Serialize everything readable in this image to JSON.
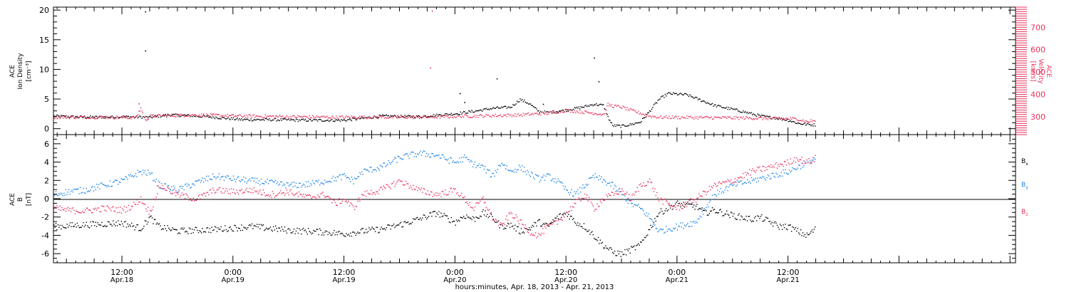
{
  "colors": {
    "black": "#000000",
    "red": "#e8305a",
    "blue": "#1a82e6"
  },
  "xaxis": {
    "title": "hours:minutes, Apr. 18, 2013 - Apr. 21, 2013",
    "range_hours": [
      4.6,
      108.6
    ],
    "ticks": [
      {
        "h": 12,
        "time": "12:00",
        "date": "Apr.18"
      },
      {
        "h": 24,
        "time": "0:00",
        "date": "Apr.19"
      },
      {
        "h": 36,
        "time": "12:00",
        "date": "Apr.19"
      },
      {
        "h": 48,
        "time": "0:00",
        "date": "Apr.20"
      },
      {
        "h": 60,
        "time": "12:00",
        "date": "Apr.20"
      },
      {
        "h": 72,
        "time": "0:00",
        "date": "Apr.21"
      },
      {
        "h": 84,
        "time": "12:00",
        "date": "Apr.21"
      }
    ]
  },
  "chart_data": [
    {
      "type": "scatter",
      "panel": "top",
      "ylabel_left": [
        "ACE",
        "Ion Density",
        "[cm⁻³]"
      ],
      "ylim_left": [
        -1,
        20.5
      ],
      "yticks_left": [
        0,
        5,
        10,
        15,
        20
      ],
      "ylabel_right": [
        "ACE",
        "Velocity",
        "[km/s]"
      ],
      "ylim_right": [
        220,
        790
      ],
      "yticks_right": [
        300,
        400,
        500,
        600,
        700
      ],
      "series": [
        {
          "color": "black",
          "axis": "left",
          "x": [
            4.6,
            8,
            12,
            15,
            17,
            19,
            20,
            22,
            25,
            28,
            32,
            36,
            40,
            44,
            48,
            50,
            52,
            54,
            55,
            56,
            57,
            58,
            60,
            62,
            63,
            64,
            64.5,
            65,
            66,
            67,
            68,
            69,
            70,
            71,
            73,
            76,
            79,
            80,
            81,
            82,
            83,
            84,
            85,
            86,
            87
          ],
          "y": [
            2.2,
            2.0,
            2.1,
            2.0,
            2.4,
            2.3,
            2.2,
            2.0,
            1.6,
            1.6,
            1.5,
            1.5,
            2.2,
            2.1,
            2.6,
            3.0,
            3.5,
            3.7,
            5.0,
            4.3,
            3.0,
            2.8,
            3.2,
            3.8,
            4.2,
            4.0,
            2.0,
            0.6,
            0.5,
            0.8,
            1.2,
            3.0,
            5.0,
            6.0,
            5.8,
            4.0,
            3.0,
            2.6,
            2.2,
            2.0,
            1.8,
            1.5,
            1.0,
            0.8,
            0.7
          ],
          "outliers": [
            [
              14.5,
              19.8
            ],
            [
              14.5,
              13.2
            ],
            [
              48.5,
              6.0
            ],
            [
              52.5,
              8.5
            ],
            [
              63.0,
              12.0
            ],
            [
              63.5,
              8.0
            ],
            [
              49.0,
              4.5
            ],
            [
              57.5,
              4.2
            ]
          ]
        },
        {
          "color": "red",
          "axis": "right",
          "x": [
            4.6,
            10,
            13.5,
            14.0,
            14.5,
            15,
            20,
            25,
            30,
            35,
            40,
            45,
            50,
            55,
            58,
            60,
            62,
            63,
            64,
            64.5,
            65,
            66,
            67,
            68,
            69,
            70,
            75,
            80,
            85,
            86,
            87
          ],
          "y": [
            300,
            300,
            298,
            340,
            285,
            305,
            310,
            305,
            302,
            300,
            300,
            300,
            305,
            310,
            318,
            330,
            322,
            318,
            312,
            355,
            350,
            345,
            330,
            318,
            305,
            300,
            298,
            296,
            292,
            280,
            285
          ],
          "outliers": [
            [
              45.5,
              775
            ],
            [
              45.3,
              520
            ],
            [
              13.8,
              360
            ]
          ]
        }
      ]
    },
    {
      "type": "scatter",
      "panel": "bottom",
      "ylabel": [
        "ACE",
        "B",
        "[nT]"
      ],
      "ylim": [
        -7,
        7
      ],
      "yticks": [
        -6,
        -4,
        -2,
        0,
        2,
        4,
        6
      ],
      "legend": [
        {
          "label": "B",
          "sub": "x",
          "color": "black"
        },
        {
          "label": "B",
          "sub": "y",
          "color": "blue"
        },
        {
          "label": "B",
          "sub": "z",
          "color": "red"
        }
      ],
      "series": [
        {
          "name": "Bx",
          "color": "black",
          "x": [
            4.6,
            8,
            12,
            14,
            15,
            16,
            18,
            22,
            26,
            30,
            34,
            36,
            38,
            40,
            42,
            44,
            46,
            48,
            49,
            50,
            51,
            52,
            53,
            54,
            55,
            56,
            57,
            58,
            59,
            60,
            61,
            62,
            63,
            64,
            65,
            66,
            67,
            68,
            70,
            72,
            74,
            75,
            76,
            77,
            78,
            79,
            80,
            81,
            82,
            83,
            84,
            85,
            86,
            87
          ],
          "y": [
            -3.0,
            -2.8,
            -2.6,
            -3.2,
            -2.0,
            -3.0,
            -3.5,
            -3.3,
            -3.0,
            -3.4,
            -3.6,
            -3.8,
            -3.5,
            -3.3,
            -2.8,
            -2.2,
            -1.5,
            -2.5,
            -1.8,
            -2.2,
            -1.5,
            -2.0,
            -3.0,
            -2.8,
            -3.5,
            -3.2,
            -2.5,
            -3.0,
            -2.0,
            -1.5,
            -2.5,
            -3.0,
            -4.0,
            -5.0,
            -5.8,
            -6.0,
            -5.5,
            -5.0,
            -1.5,
            -0.5,
            -0.8,
            -1.5,
            -1.2,
            -1.5,
            -1.8,
            -2.0,
            -2.2,
            -2.0,
            -2.5,
            -3.0,
            -3.0,
            -3.5,
            -4.0,
            -3.2
          ]
        },
        {
          "name": "By",
          "color": "blue",
          "x": [
            4.6,
            6,
            8,
            10,
            12,
            13,
            14,
            15,
            16,
            18,
            20,
            22,
            24,
            26,
            28,
            30,
            32,
            34,
            36,
            37,
            38,
            40,
            42,
            44,
            46,
            48,
            49,
            50,
            51,
            52,
            53,
            54,
            55,
            56,
            57,
            58,
            59,
            60,
            61,
            62,
            63,
            64,
            65,
            66,
            67,
            68,
            69,
            70,
            72,
            74,
            76,
            78,
            80,
            82,
            84,
            85,
            86,
            87
          ],
          "y": [
            0.5,
            0.8,
            1.0,
            1.5,
            2.0,
            2.5,
            3.0,
            2.8,
            1.5,
            1.0,
            1.8,
            2.5,
            2.2,
            2.0,
            1.8,
            1.5,
            1.6,
            2.0,
            2.5,
            2.0,
            3.0,
            3.5,
            4.5,
            5.0,
            4.8,
            4.0,
            4.5,
            3.8,
            3.5,
            2.5,
            4.0,
            3.0,
            3.5,
            2.8,
            2.2,
            2.5,
            2.0,
            1.0,
            0.5,
            1.5,
            2.5,
            2.0,
            1.5,
            0.5,
            -0.5,
            -1.0,
            -2.0,
            -3.5,
            -3.0,
            -2.5,
            0.5,
            1.5,
            2.0,
            2.5,
            3.0,
            3.5,
            4.0,
            4.5
          ]
        },
        {
          "name": "Bz",
          "color": "red",
          "x": [
            4.6,
            6,
            8,
            10,
            12,
            13,
            14,
            15,
            16,
            18,
            20,
            22,
            24,
            26,
            28,
            30,
            32,
            34,
            35,
            36,
            37,
            38,
            40,
            42,
            44,
            46,
            48,
            49,
            50,
            51,
            52,
            53,
            54,
            55,
            56,
            57,
            58,
            59,
            60,
            61,
            62,
            63,
            64,
            65,
            66,
            67,
            68,
            69,
            70,
            72,
            74,
            76,
            78,
            80,
            82,
            84,
            85,
            86,
            87
          ],
          "y": [
            -1.0,
            -1.2,
            -1.3,
            -1.0,
            -1.2,
            -0.8,
            0.0,
            -1.5,
            1.5,
            0.5,
            0.0,
            1.0,
            0.8,
            1.0,
            0.5,
            0.8,
            0.2,
            0.5,
            -0.5,
            0.0,
            -1.0,
            0.5,
            1.0,
            2.0,
            1.0,
            0.5,
            1.0,
            0.0,
            -1.0,
            0.0,
            -2.0,
            -3.0,
            -1.5,
            -2.5,
            -3.5,
            -4.0,
            -3.0,
            -2.5,
            -1.5,
            -0.5,
            0.5,
            -1.0,
            0.0,
            0.5,
            1.0,
            0.0,
            1.5,
            2.0,
            0.0,
            -1.0,
            0.0,
            1.5,
            2.0,
            3.0,
            3.5,
            4.0,
            4.5,
            4.0,
            4.5
          ]
        }
      ]
    }
  ]
}
